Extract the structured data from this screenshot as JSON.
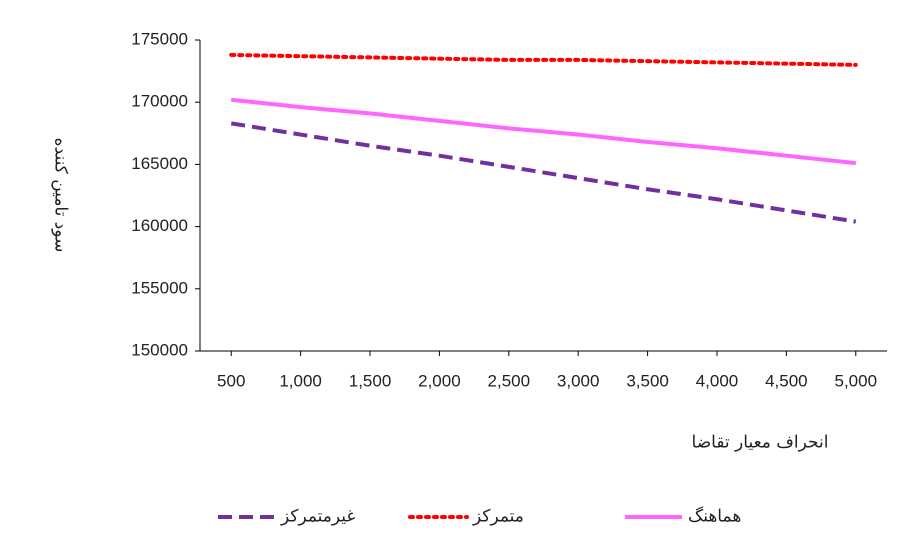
{
  "chart_data": {
    "type": "line",
    "y_label": "سود تامین کننده",
    "x_label": "انحراف معیار تقاضا",
    "x": [
      500,
      1000,
      1500,
      2000,
      2500,
      3000,
      3500,
      4000,
      4500,
      5000
    ],
    "xlim": [
      275,
      5225
    ],
    "xticks": [
      500,
      {
        "value": 1000,
        "label": "1,000"
      },
      {
        "value": 1500,
        "label": "1,500"
      },
      {
        "value": 2000,
        "label": "2,000"
      },
      {
        "value": 2500,
        "label": "2,500"
      },
      {
        "value": 3000,
        "label": "3,000"
      },
      {
        "value": 3500,
        "label": "3,500"
      },
      {
        "value": 4000,
        "label": "4,000"
      },
      {
        "value": 4500,
        "label": "4,500"
      },
      {
        "value": 5000,
        "label": "5,000"
      }
    ],
    "ylim": [
      150000,
      175000
    ],
    "yticks": [
      150000,
      155000,
      160000,
      165000,
      170000,
      175000
    ],
    "legend": "bottom",
    "series": [
      {
        "name": "غیرمتمرکز",
        "color": "#7030a0",
        "style": "dashed",
        "values": [
          168300,
          167400,
          166500,
          165700,
          164800,
          163900,
          163000,
          162200,
          161300,
          160400
        ]
      },
      {
        "name": "متمرکز",
        "color": "#ff0000",
        "style": "dotted",
        "values": [
          173800,
          173700,
          173600,
          173500,
          173400,
          173400,
          173300,
          173200,
          173100,
          173000
        ]
      },
      {
        "name": "هماهنگ",
        "color": "#ff66ff",
        "style": "solid",
        "values": [
          170200,
          169600,
          169100,
          168500,
          167900,
          167400,
          166800,
          166300,
          165700,
          165100
        ]
      }
    ]
  }
}
